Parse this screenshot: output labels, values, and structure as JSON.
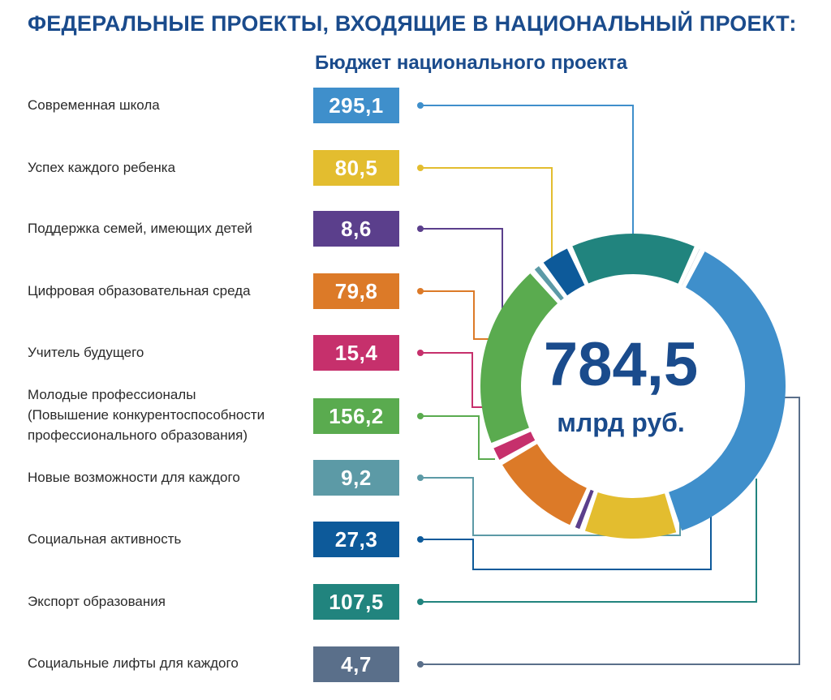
{
  "chart_data": {
    "type": "pie",
    "title": "ФЕДЕРАЛЬНЫЕ ПРОЕКТЫ, ВХОДЯЩИЕ В НАЦИОНАЛЬНЫЙ ПРОЕКТ:",
    "subtitle": "Бюджет национального проекта",
    "total": {
      "value": "784,5",
      "unit": "млрд руб."
    },
    "slices": [
      {
        "label": "Современная школа",
        "value": 295.1,
        "display": "295,1",
        "color": "#3f8fcb"
      },
      {
        "label": "Успех каждого ребенка",
        "value": 80.5,
        "display": "80,5",
        "color": "#e3bd2f"
      },
      {
        "label": "Поддержка семей, имеющих детей",
        "value": 8.6,
        "display": "8,6",
        "color": "#5b3f8c"
      },
      {
        "label": "Цифровая образовательная среда",
        "value": 79.8,
        "display": "79,8",
        "color": "#dc7a28"
      },
      {
        "label": "Учитель будущего",
        "value": 15.4,
        "display": "15,4",
        "color": "#c6306c"
      },
      {
        "label": "Молодые профессионалы\n(Повышение конкурентоспособности\nпрофессионального образования)",
        "value": 156.2,
        "display": "156,2",
        "color": "#5aab4f"
      },
      {
        "label": "Новые возможности для каждого",
        "value": 9.2,
        "display": "9,2",
        "color": "#5c9aa6"
      },
      {
        "label": "Социальная активность",
        "value": 27.3,
        "display": "27,3",
        "color": "#0d5a9a"
      },
      {
        "label": "Экспорт образования",
        "value": 107.5,
        "display": "107,5",
        "color": "#21847e"
      },
      {
        "label": "Социальные лифты для каждого",
        "value": 4.7,
        "display": "4,7",
        "color": "#5a6f8a"
      }
    ]
  }
}
